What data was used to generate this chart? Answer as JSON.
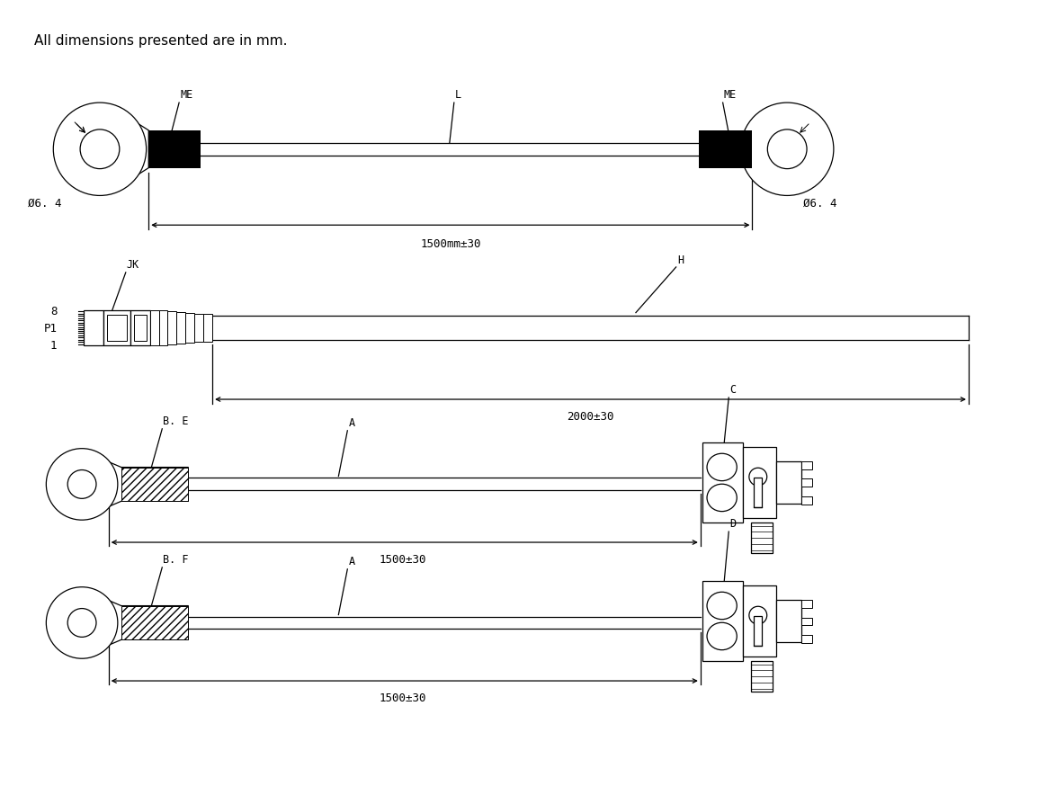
{
  "title_text": "All dimensions presented are in mm.",
  "bg_color": "#ffffff",
  "line_color": "#000000",
  "diagram1": {
    "label_ME_left": "ME",
    "label_ME_right": "ME",
    "label_L": "L",
    "label_dim": "1500mm±30",
    "label_hole": "Ø6. 4"
  },
  "diagram2": {
    "label_JK": "JK",
    "label_H": "H",
    "label_8": "8",
    "label_P1": "P1",
    "label_1": "1",
    "label_dim": "2000±30"
  },
  "diagram3": {
    "label_BE": "B. E",
    "label_BF": "B. F",
    "label_A1": "A",
    "label_A2": "A",
    "label_C": "C",
    "label_D": "D",
    "label_dim1": "1500±30",
    "label_dim2": "1500±30"
  }
}
